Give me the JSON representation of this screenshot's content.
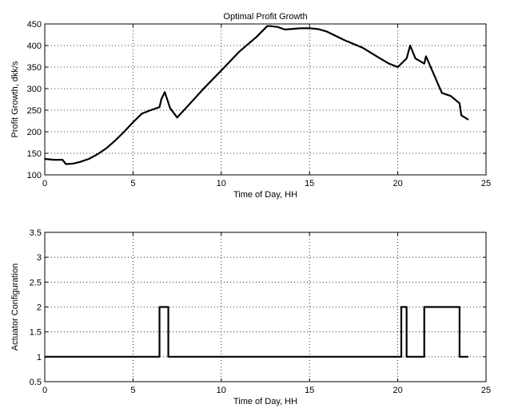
{
  "chart_data": [
    {
      "type": "line",
      "title": "Optimal Profit Growth",
      "xlabel": "Time of Day, HH",
      "ylabel": "Profit Growth, dkk/s",
      "xlim": [
        0,
        25
      ],
      "ylim": [
        100,
        450
      ],
      "xticks": [
        "0",
        "5",
        "10",
        "15",
        "20",
        "25"
      ],
      "yticks": [
        "100",
        "150",
        "200",
        "250",
        "300",
        "350",
        "400",
        "450"
      ],
      "grid": true,
      "series": [
        {
          "x": [
            0,
            0.5,
            1.0,
            1.2,
            1.6,
            2,
            2.5,
            3,
            3.5,
            4,
            4.5,
            5,
            5.5,
            6,
            6.5,
            6.6,
            6.8,
            7.1,
            7.5,
            8,
            9,
            10,
            11,
            12,
            12.6,
            12.8,
            13.2,
            13.6,
            14.5,
            15,
            15.5,
            16,
            17,
            18,
            19,
            19.5,
            20,
            20.5,
            20.7,
            21,
            21.5,
            21.6,
            22.5,
            23,
            23.5,
            23.6,
            24
          ],
          "values": [
            137,
            135,
            135,
            125,
            126,
            130,
            137,
            148,
            162,
            180,
            200,
            222,
            242,
            250,
            257,
            275,
            292,
            255,
            233,
            255,
            300,
            342,
            385,
            420,
            445,
            445,
            443,
            437,
            440,
            440,
            438,
            432,
            412,
            395,
            370,
            358,
            350,
            370,
            400,
            370,
            358,
            375,
            290,
            283,
            266,
            238,
            228
          ]
        }
      ]
    },
    {
      "type": "line",
      "title": "",
      "xlabel": "Time of Day, HH",
      "ylabel": "Actuator Configuration",
      "xlim": [
        0,
        25
      ],
      "ylim": [
        0.5,
        3.5
      ],
      "xticks": [
        "0",
        "5",
        "10",
        "15",
        "20",
        "25"
      ],
      "yticks": [
        "0.5",
        "1",
        "1.5",
        "2",
        "2.5",
        "3",
        "3.5"
      ],
      "grid": true,
      "series": [
        {
          "x": [
            0,
            6.5,
            6.5,
            7.0,
            7.0,
            20.2,
            20.2,
            20.5,
            20.5,
            21.5,
            21.5,
            23.5,
            23.5,
            24
          ],
          "values": [
            1,
            1,
            2,
            2,
            1,
            1,
            2,
            2,
            1,
            1,
            2,
            2,
            1,
            1
          ]
        }
      ]
    }
  ]
}
